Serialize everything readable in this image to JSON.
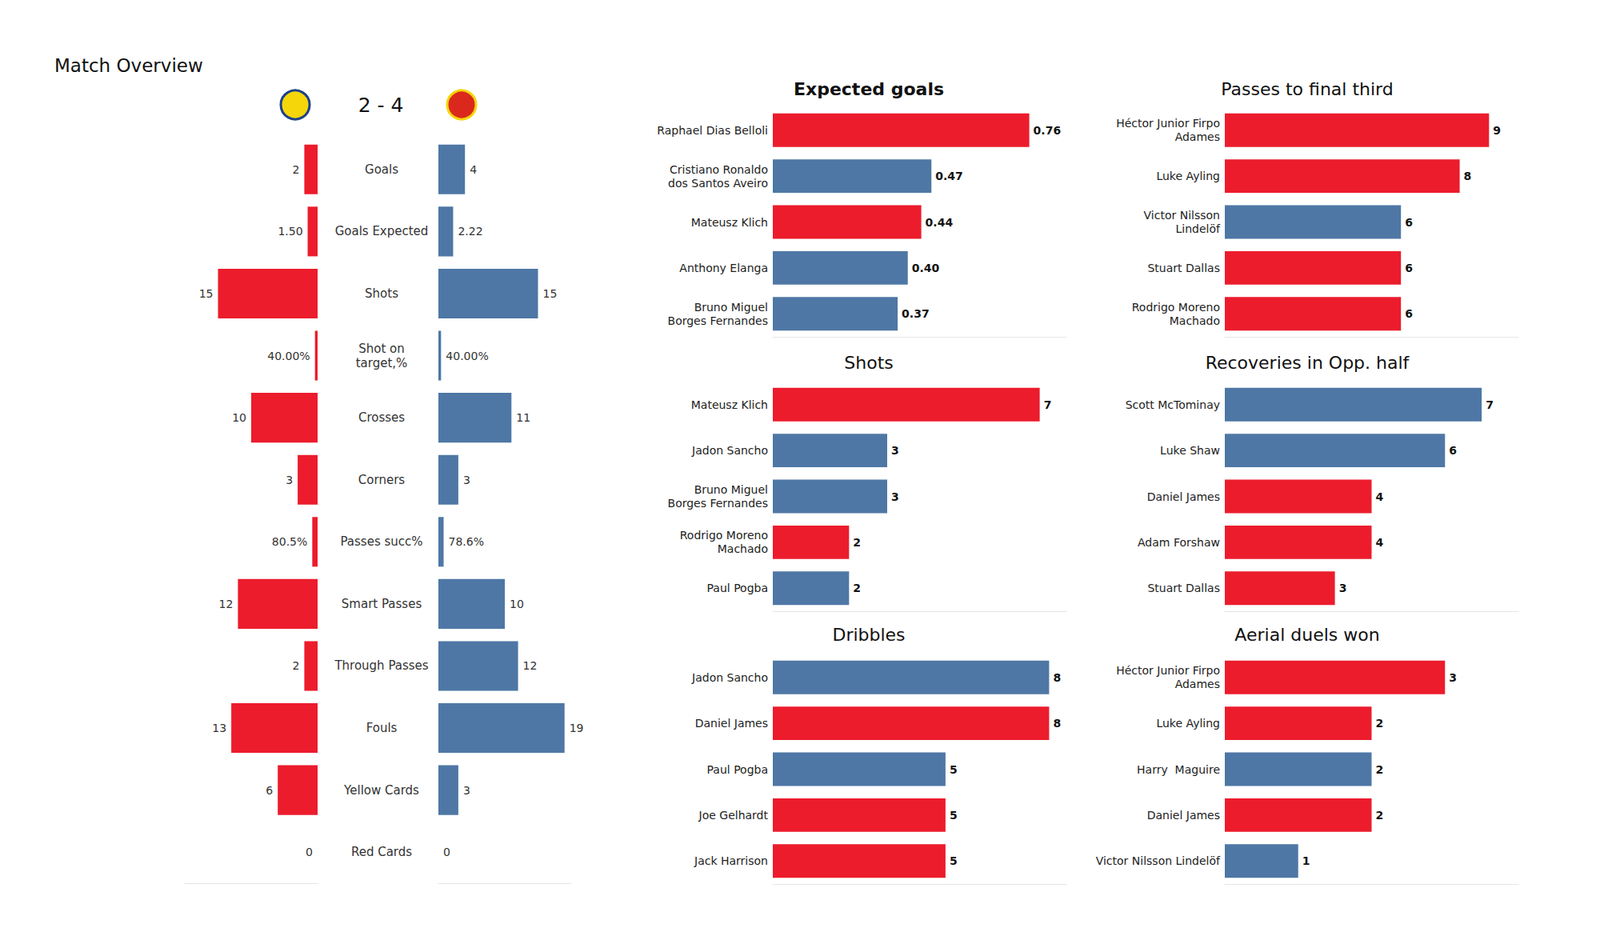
{
  "chart_data": [
    {
      "type": "bar",
      "title": "Match Overview",
      "subtitle": "2 - 4",
      "orientation": "horizontal",
      "categories": [
        "Goals",
        "Goals Expected",
        "Shots",
        "Shot on\ntarget,%",
        "Crosses",
        "Corners",
        "Passes succ%",
        "Smart Passes",
        "Through Passes",
        "Fouls",
        "Yellow Cards",
        "Red Cards"
      ],
      "series": [
        {
          "color": "#ec1c2c",
          "values": [
            2,
            1.5,
            15,
            0.4,
            10,
            3,
            0.805,
            12,
            2,
            13,
            6,
            0
          ],
          "value_labels": [
            "2",
            "1.50",
            "15",
            "40.00%",
            "10",
            "3",
            "80.5%",
            "12",
            "2",
            "13",
            "6",
            "0"
          ]
        },
        {
          "color": "#4e77a5",
          "values": [
            4,
            2.22,
            15,
            0.4,
            11,
            3,
            0.786,
            10,
            12,
            19,
            3,
            0
          ],
          "value_labels": [
            "4",
            "2.22",
            "15",
            "40.00%",
            "11",
            "3",
            "78.6%",
            "10",
            "12",
            "19",
            "3",
            "0"
          ]
        }
      ],
      "xlim": [
        0,
        20
      ],
      "data_labels": true,
      "tick_labels": "y"
    },
    {
      "type": "bar",
      "title": "Expected goals",
      "orientation": "horizontal",
      "categories": [
        "Raphael Dias Belloli",
        "Cristiano Ronaldo\ndos Santos Aveiro",
        "Mateusz Klich",
        "Anthony Elanga",
        "Bruno Miguel\nBorges Fernandes"
      ],
      "values": [
        0.76,
        0.47,
        0.44,
        0.4,
        0.37
      ],
      "value_labels": [
        "0.76",
        "0.47",
        "0.44",
        "0.40",
        "0.37"
      ],
      "colors": [
        "#ec1c2c",
        "#4e77a5",
        "#ec1c2c",
        "#4e77a5",
        "#4e77a5"
      ],
      "xlim": [
        0,
        0.87
      ],
      "data_labels": true,
      "tick_labels": "y"
    },
    {
      "type": "bar",
      "title": "Passes to final third",
      "orientation": "horizontal",
      "categories": [
        "Héctor Junior Firpo\nAdames",
        "Luke Ayling",
        "Victor Nilsson\nLindelöf",
        "Stuart Dallas",
        "Rodrigo Moreno\nMachado"
      ],
      "values": [
        9,
        8,
        6,
        6,
        6
      ],
      "colors": [
        "#ec1c2c",
        "#ec1c2c",
        "#4e77a5",
        "#ec1c2c",
        "#ec1c2c"
      ],
      "xlim": [
        0,
        10
      ],
      "data_labels": true,
      "tick_labels": "y"
    },
    {
      "type": "bar",
      "title": "Shots",
      "orientation": "horizontal",
      "categories": [
        "Mateusz Klich",
        "Jadon Sancho",
        "Bruno Miguel\nBorges Fernandes",
        "Rodrigo Moreno\nMachado",
        "Paul Pogba"
      ],
      "values": [
        7,
        3,
        3,
        2,
        2
      ],
      "colors": [
        "#ec1c2c",
        "#4e77a5",
        "#4e77a5",
        "#ec1c2c",
        "#4e77a5"
      ],
      "xlim": [
        0,
        7.7
      ],
      "data_labels": true,
      "tick_labels": "y"
    },
    {
      "type": "bar",
      "title": "Recoveries in Opp. half",
      "orientation": "horizontal",
      "categories": [
        "Scott McTominay",
        "Luke Shaw",
        "Daniel James",
        "Adam Forshaw",
        "Stuart Dallas"
      ],
      "values": [
        7,
        6,
        4,
        4,
        3
      ],
      "colors": [
        "#4e77a5",
        "#4e77a5",
        "#ec1c2c",
        "#ec1c2c",
        "#ec1c2c"
      ],
      "xlim": [
        0,
        8
      ],
      "data_labels": true,
      "tick_labels": "y"
    },
    {
      "type": "bar",
      "title": "Dribbles",
      "orientation": "horizontal",
      "categories": [
        "Jadon Sancho",
        "Daniel James",
        "Paul Pogba",
        "Joe Gelhardt",
        "Jack Harrison"
      ],
      "values": [
        8,
        8,
        5,
        5,
        5
      ],
      "colors": [
        "#4e77a5",
        "#ec1c2c",
        "#4e77a5",
        "#ec1c2c",
        "#ec1c2c"
      ],
      "xlim": [
        0,
        8.5
      ],
      "data_labels": true,
      "tick_labels": "y"
    },
    {
      "type": "bar",
      "title": "Aerial duels won",
      "orientation": "horizontal",
      "categories": [
        "Héctor Junior Firpo\nAdames",
        "Luke Ayling",
        "Harry  Maguire",
        "Daniel James",
        "Victor Nilsson Lindelöf"
      ],
      "values": [
        3,
        2,
        2,
        2,
        1
      ],
      "colors": [
        "#ec1c2c",
        "#ec1c2c",
        "#4e77a5",
        "#ec1c2c",
        "#4e77a5"
      ],
      "xlim": [
        0,
        4
      ],
      "data_labels": true,
      "tick_labels": "y"
    }
  ]
}
